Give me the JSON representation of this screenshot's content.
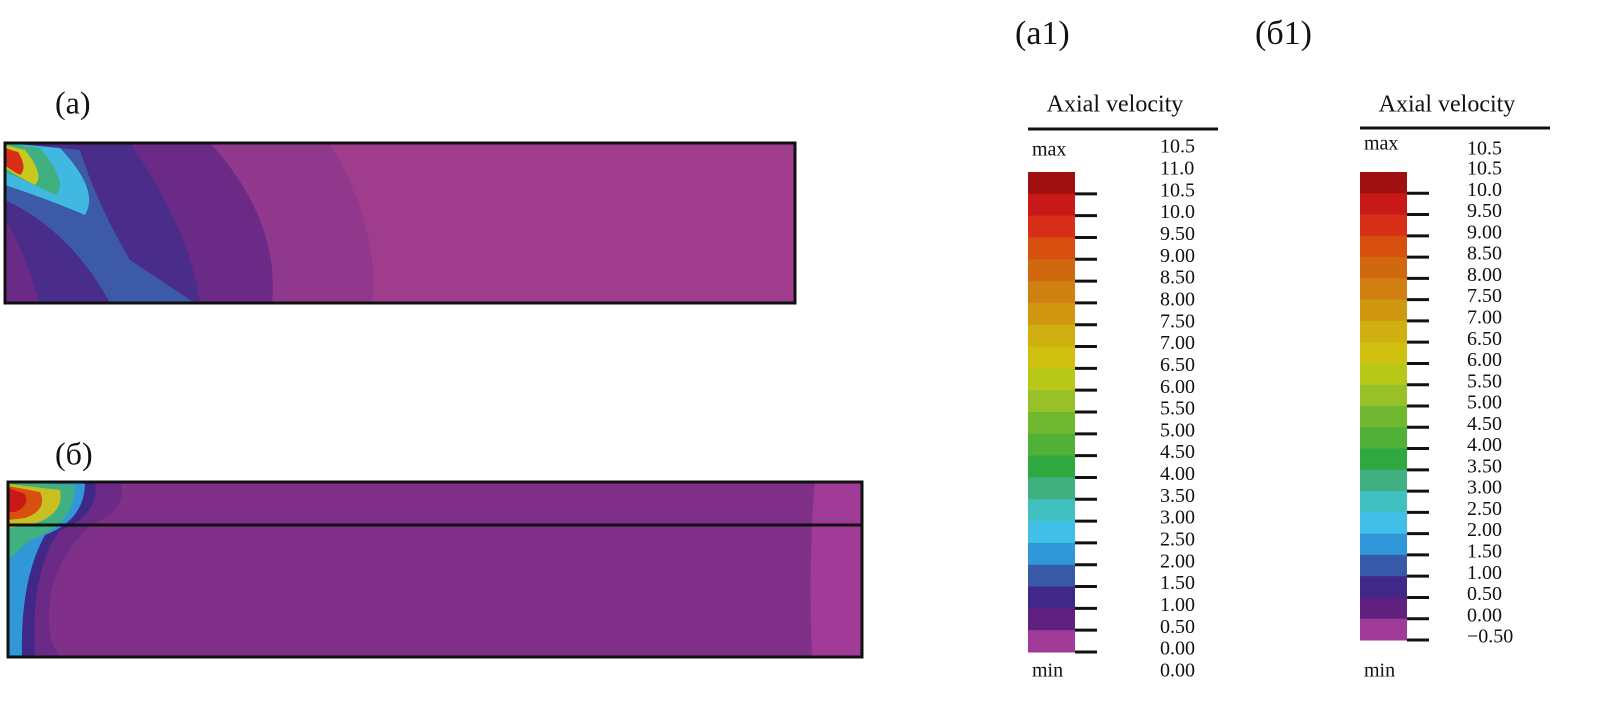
{
  "panels": {
    "a": {
      "label": "(a)"
    },
    "b": {
      "label": "(б)"
    }
  },
  "legends": [
    {
      "heading": "(a1)",
      "title": "Axial velocity",
      "max_label": "max",
      "max_value": "10.5",
      "ticks": [
        "11.0",
        "10.5",
        "10.0",
        "9.50",
        "9.00",
        "8.50",
        "8.00",
        "7.50",
        "7.00",
        "6.50",
        "6.00",
        "5.50",
        "5.00",
        "4.50",
        "4.00",
        "3.50",
        "3.00",
        "2.50",
        "2.00",
        "1.50",
        "1.00",
        "0.50",
        "0.00"
      ],
      "min_label": "min",
      "min_value": "0.00"
    },
    {
      "heading": "(б1)",
      "title": "Axial velocity",
      "max_label": "max",
      "max_value": "10.5",
      "ticks": [
        "10.5",
        "10.0",
        "9.50",
        "9.00",
        "8.50",
        "8.00",
        "7.50",
        "7.00",
        "6.50",
        "6.00",
        "5.50",
        "5.00",
        "4.50",
        "4.00",
        "3.50",
        "3.00",
        "2.50",
        "2.00",
        "1.50",
        "1.00",
        "0.50",
        "0.00",
        "−0.50"
      ],
      "min_label": "min"
    }
  ],
  "colors": [
    "#a01010",
    "#c81818",
    "#d83018",
    "#d85010",
    "#d06810",
    "#d08010",
    "#d09810",
    "#d0b010",
    "#d0c010",
    "#b8c818",
    "#98c028",
    "#70b830",
    "#50b038",
    "#30a840",
    "#40b080",
    "#40c0c0",
    "#40c0e8",
    "#3098d8",
    "#3858a8",
    "#402888",
    "#602080",
    "#a03c98"
  ]
}
